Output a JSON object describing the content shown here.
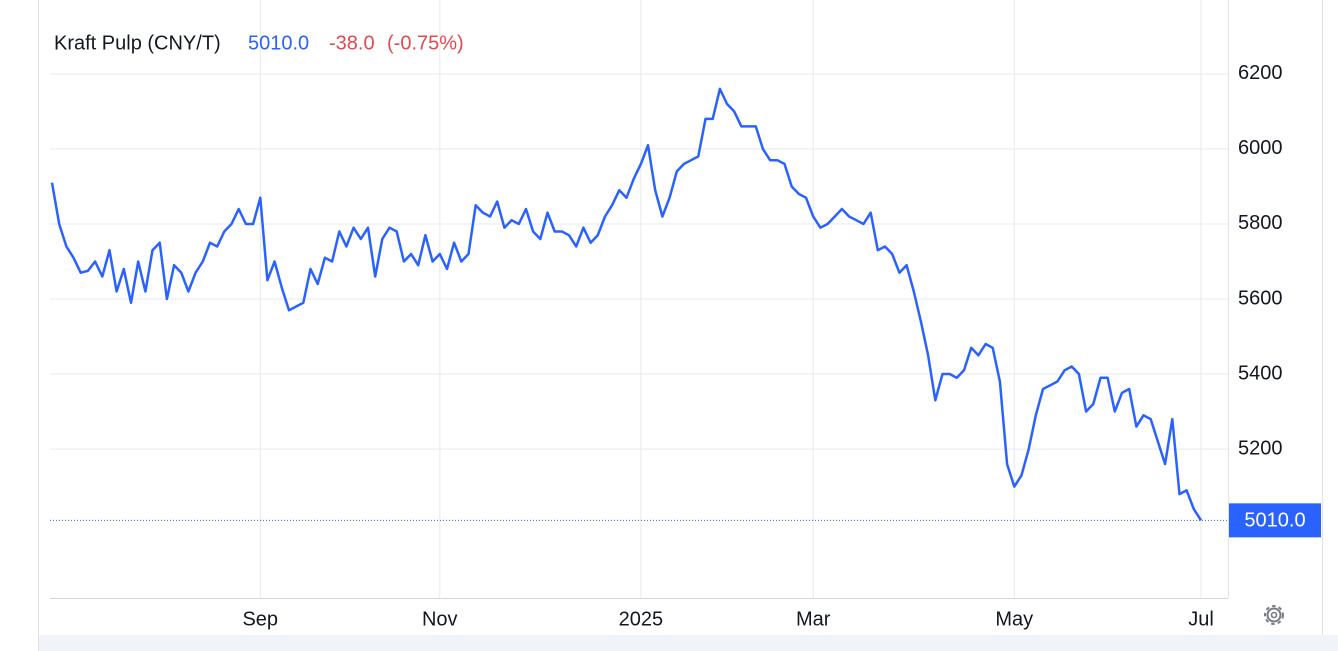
{
  "chart_data": {
    "type": "line",
    "title": "Kraft Pulp (CNY/T)",
    "last_value": {
      "value": 5010,
      "label": "5010.0"
    },
    "change": "-38.0",
    "change_percent": "(-0.75%)",
    "categories": [
      null,
      null,
      null,
      null,
      null,
      null,
      null,
      null,
      null,
      null,
      null,
      null,
      null,
      null,
      null,
      null,
      null,
      null,
      null,
      null,
      null,
      null,
      null,
      null,
      null,
      null,
      null,
      null,
      null,
      "Sep",
      null,
      null,
      null,
      null,
      null,
      null,
      null,
      null,
      null,
      null,
      null,
      null,
      null,
      null,
      null,
      null,
      null,
      null,
      null,
      null,
      null,
      null,
      null,
      null,
      "Nov",
      null,
      null,
      null,
      null,
      null,
      null,
      null,
      null,
      null,
      null,
      null,
      null,
      null,
      null,
      null,
      null,
      null,
      null,
      null,
      null,
      null,
      null,
      null,
      null,
      null,
      null,
      null,
      "2025",
      null,
      null,
      null,
      null,
      null,
      null,
      null,
      null,
      null,
      null,
      null,
      null,
      null,
      null,
      null,
      null,
      null,
      null,
      null,
      null,
      null,
      null,
      null,
      "Mar",
      null,
      null,
      null,
      null,
      null,
      null,
      null,
      null,
      null,
      null,
      null,
      null,
      null,
      null,
      null,
      null,
      null,
      null,
      null,
      null,
      null,
      null,
      null,
      null,
      null,
      null,
      null,
      "May",
      null,
      null,
      null,
      null,
      null,
      null,
      null,
      null,
      null,
      null,
      null,
      null,
      null,
      null,
      null,
      null,
      null,
      null,
      null,
      null,
      null,
      null,
      null,
      null,
      null,
      "Jul"
    ],
    "series": [
      {
        "name": "Kraft Pulp",
        "color": "#2962ff",
        "values": [
          5910,
          5800,
          5740,
          5710,
          5670,
          5675,
          5700,
          5660,
          5730,
          5620,
          5680,
          5590,
          5700,
          5620,
          5730,
          5750,
          5600,
          5690,
          5670,
          5620,
          5670,
          5700,
          5750,
          5740,
          5780,
          5800,
          5840,
          5800,
          5800,
          5870,
          5650,
          5700,
          5630,
          5570,
          5580,
          5590,
          5680,
          5640,
          5710,
          5700,
          5780,
          5740,
          5790,
          5760,
          5790,
          5660,
          5760,
          5790,
          5780,
          5700,
          5720,
          5690,
          5770,
          5700,
          5720,
          5680,
          5750,
          5700,
          5720,
          5850,
          5830,
          5820,
          5860,
          5790,
          5810,
          5800,
          5840,
          5780,
          5760,
          5830,
          5780,
          5780,
          5770,
          5740,
          5790,
          5750,
          5770,
          5820,
          5850,
          5890,
          5870,
          5920,
          5960,
          6010,
          5890,
          5820,
          5870,
          5940,
          5960,
          5970,
          5980,
          6080,
          6080,
          6160,
          6120,
          6100,
          6060,
          6060,
          6060,
          6000,
          5970,
          5970,
          5960,
          5900,
          5880,
          5870,
          5820,
          5790,
          5800,
          5820,
          5840,
          5820,
          5810,
          5800,
          5830,
          5730,
          5740,
          5720,
          5670,
          5690,
          5620,
          5540,
          5450,
          5330,
          5400,
          5400,
          5390,
          5410,
          5470,
          5450,
          5480,
          5470,
          5380,
          5160,
          5100,
          5130,
          5200,
          5290,
          5360,
          5370,
          5380,
          5410,
          5420,
          5400,
          5300,
          5320,
          5390,
          5390,
          5300,
          5350,
          5360,
          5260,
          5290,
          5280,
          5220,
          5160,
          5280,
          5080,
          5090,
          5040,
          5010
        ]
      }
    ],
    "ylim": [
      4803,
      6397
    ],
    "yticks": [
      5200,
      5400,
      5600,
      5800,
      6000,
      6200
    ],
    "grid": true
  }
}
